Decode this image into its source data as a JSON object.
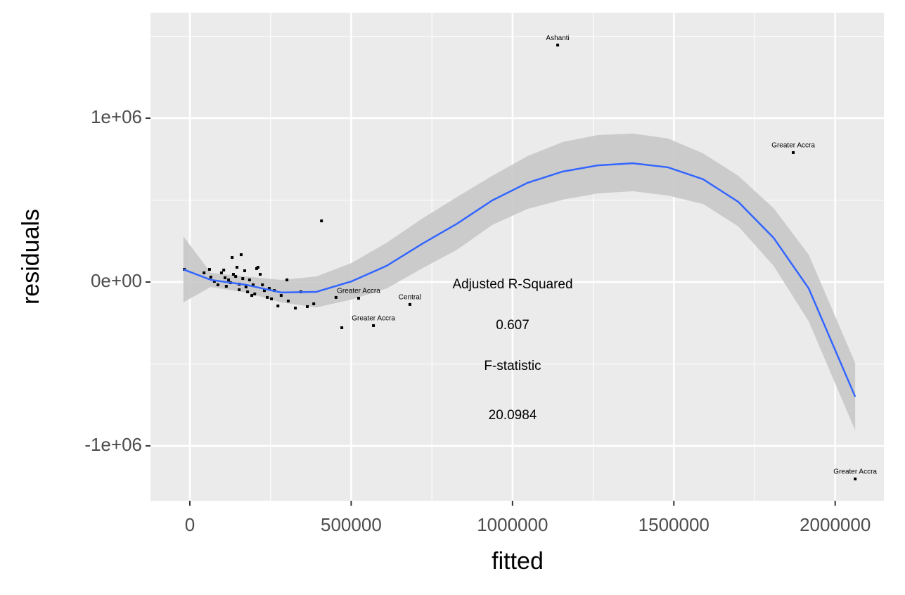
{
  "chart_data": {
    "type": "scatter",
    "x_label": "fitted",
    "y_label": "residuals",
    "xlim": [
      -122000,
      2151000
    ],
    "ylim": [
      -1335000,
      1644000
    ],
    "xticks": [
      0,
      500000,
      1000000,
      1500000,
      2000000
    ],
    "yticks": [
      {
        "value": -1000000,
        "label": "-1e+06"
      },
      {
        "value": 0,
        "label": "0e+00"
      },
      {
        "value": 1000000,
        "label": "1e+06"
      }
    ],
    "x_minor_ticks": [
      250000,
      750000,
      1250000,
      1750000
    ],
    "y_minor_ticks": [
      -500000,
      500000,
      1500000
    ],
    "grid": true,
    "annotations": [
      "Adjusted R-Squared",
      "0.607",
      "F-statistic",
      "20.0984"
    ],
    "points": {
      "color": "#000000",
      "x": [
        -17000,
        44000,
        61000,
        65000,
        76000,
        87000,
        98000,
        105000,
        109000,
        113000,
        120000,
        126000,
        131000,
        135000,
        142000,
        146000,
        153000,
        153000,
        159000,
        164000,
        170000,
        174000,
        179000,
        185000,
        192000,
        196000,
        201000,
        207000,
        211000,
        218000,
        225000,
        231000,
        240000,
        246000,
        253000,
        262000,
        273000,
        283000,
        301000,
        305000,
        327000,
        344000,
        364000,
        384000,
        408000,
        453000,
        471000,
        523000,
        569000,
        682000,
        1140000,
        1870000,
        2062000
      ],
      "y": [
        77000,
        56000,
        77000,
        30000,
        4000,
        -17000,
        56000,
        73000,
        26000,
        -26000,
        13000,
        -4000,
        150000,
        47000,
        34000,
        90000,
        -13000,
        -47000,
        167000,
        21000,
        69000,
        -30000,
        -60000,
        13000,
        -82000,
        -17000,
        -73000,
        82000,
        90000,
        47000,
        -17000,
        -52000,
        -94000,
        -39000,
        -103000,
        -52000,
        -146000,
        -82000,
        13000,
        -116000,
        -159000,
        -60000,
        -150000,
        -133000,
        373000,
        -94000,
        -279000,
        -99000,
        -266000,
        -137000,
        1446000,
        790000,
        -1202000
      ],
      "labels": [
        null,
        null,
        null,
        null,
        null,
        null,
        null,
        null,
        null,
        null,
        null,
        null,
        null,
        null,
        null,
        null,
        null,
        null,
        null,
        null,
        null,
        null,
        null,
        null,
        null,
        null,
        null,
        null,
        null,
        null,
        null,
        null,
        null,
        null,
        null,
        null,
        null,
        null,
        null,
        null,
        null,
        null,
        null,
        null,
        null,
        null,
        null,
        "Greater Accra",
        "Greater Accra",
        "Central",
        "Ashanti",
        "Greater Accra",
        "Greater Accra"
      ]
    },
    "smooth": {
      "color": "#3366ff",
      "band_color": "#c8c8c8",
      "x": [
        -20000,
        65000,
        174000,
        283000,
        392000,
        501000,
        610000,
        719000,
        828000,
        937000,
        1046000,
        1155000,
        1264000,
        1373000,
        1482000,
        1591000,
        1700000,
        1809000,
        1918000,
        2062000
      ],
      "y": [
        77000,
        13000,
        -17000,
        -64000,
        -60000,
        4000,
        99000,
        232000,
        356000,
        498000,
        605000,
        674000,
        712000,
        725000,
        700000,
        627000,
        489000,
        270000,
        -39000,
        -700000
      ],
      "upper": [
        279000,
        56000,
        34000,
        13000,
        34000,
        116000,
        240000,
        386000,
        519000,
        648000,
        768000,
        854000,
        897000,
        906000,
        876000,
        785000,
        648000,
        451000,
        167000,
        -494000
      ],
      "lower": [
        -124000,
        -30000,
        -64000,
        -124000,
        -155000,
        -107000,
        -39000,
        82000,
        197000,
        348000,
        446000,
        502000,
        541000,
        554000,
        528000,
        476000,
        339000,
        99000,
        -240000,
        -906000
      ]
    }
  }
}
